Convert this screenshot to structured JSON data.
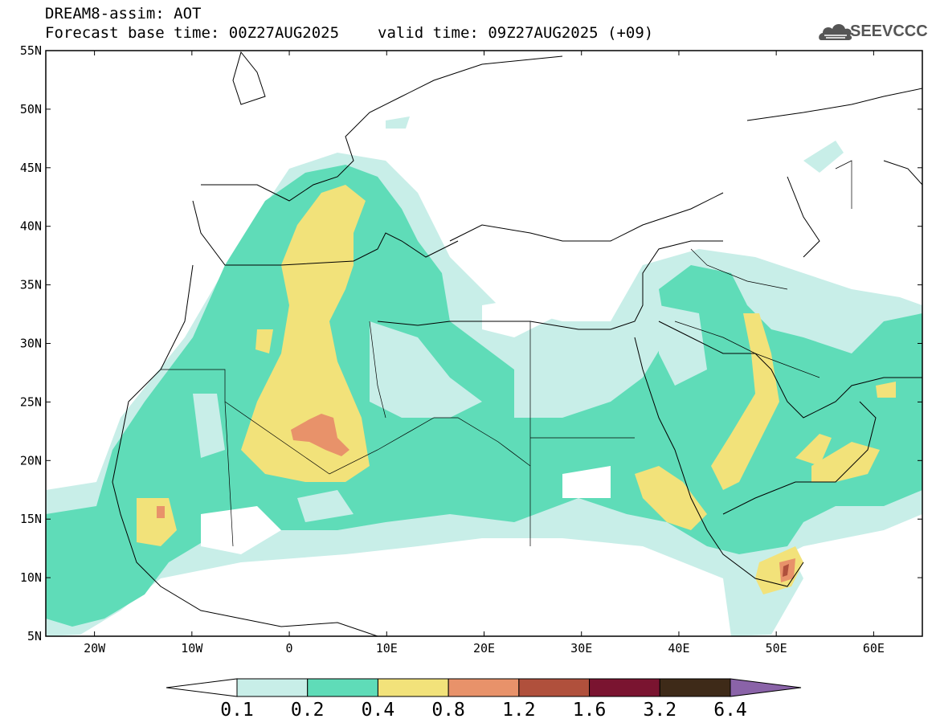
{
  "header": {
    "line1": "DREAM8-assim: AOT",
    "base_time": "Forecast base time: 00Z27AUG2025",
    "valid_time": "valid time: 09Z27AUG2025 (+09)"
  },
  "logo": {
    "text": "SEEVCCC",
    "icon": "cloud-icon"
  },
  "map": {
    "projection": "cylindrical",
    "lon_range": [
      -25,
      65
    ],
    "lat_range": [
      5,
      55
    ],
    "lat_ticks": [
      "5N",
      "10N",
      "15N",
      "20N",
      "25N",
      "30N",
      "35N",
      "40N",
      "45N",
      "50N",
      "55N"
    ],
    "lon_ticks": [
      "20W",
      "10W",
      "0",
      "10E",
      "20E",
      "30E",
      "40E",
      "50E",
      "60E"
    ]
  },
  "colorbar": {
    "levels": [
      "0.1",
      "0.2",
      "0.4",
      "0.8",
      "1.2",
      "1.6",
      "3.2",
      "6.4"
    ],
    "colors": [
      "#c8eee8",
      "#5fdcb8",
      "#f2e27a",
      "#e8926a",
      "#b0503c",
      "#7a1430",
      "#3e2a18"
    ],
    "under_color": "#ffffff",
    "over_color": "#8a63a8"
  }
}
